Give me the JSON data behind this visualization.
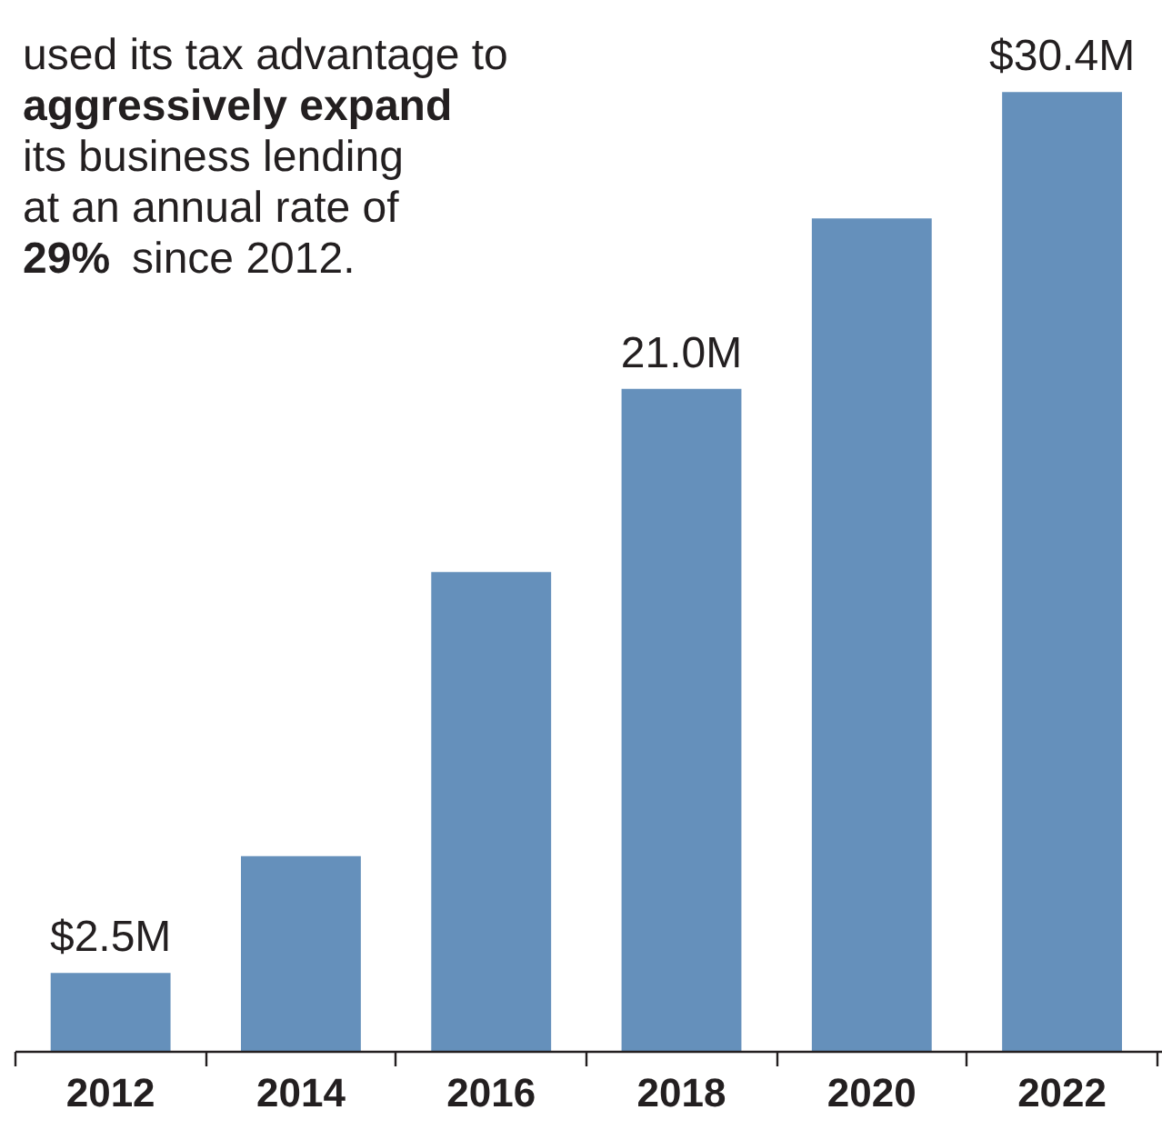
{
  "chart_data": {
    "type": "bar",
    "categories": [
      "2012",
      "2014",
      "2016",
      "2018",
      "2020",
      "2022"
    ],
    "values": [
      2.5,
      6.2,
      15.2,
      21.0,
      26.4,
      30.4
    ],
    "value_labels": [
      "$2.5M",
      null,
      null,
      "21.0M",
      null,
      "$30.4M"
    ],
    "color": "#6590bb",
    "grid": false,
    "annotations": [
      "used its tax advantage to\naggressively expand\nits business lending\nat an annual rate of\n29% since 2012."
    ]
  }
}
